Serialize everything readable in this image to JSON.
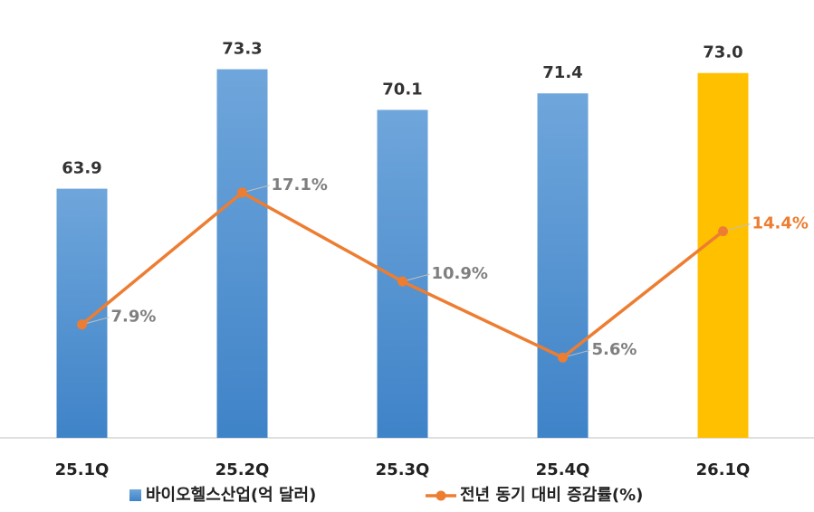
{
  "chart_data": {
    "type": "combo",
    "categories": [
      "25.1Q",
      "25.2Q",
      "25.3Q",
      "25.4Q",
      "26.1Q"
    ],
    "ylim": [
      44.3,
      75.9
    ],
    "y2lim": [
      0,
      28
    ],
    "series": [
      {
        "name": "바이오헬스산업(억 달러)",
        "type": "bar",
        "color": "#5b9bd5",
        "colors": [
          "#5b9bd5",
          "#5b9bd5",
          "#5b9bd5",
          "#5b9bd5",
          "#ffc000"
        ],
        "values": [
          63.9,
          73.3,
          70.1,
          71.4,
          73.0
        ],
        "value_labels": [
          "63.9",
          "73.3",
          "70.1",
          "71.4",
          "73.0"
        ]
      },
      {
        "name": "전년 동기 대비 증감률(%)",
        "type": "line",
        "axis": "y2",
        "color": "#ed7d31",
        "values": [
          7.9,
          17.1,
          10.9,
          5.6,
          14.4
        ],
        "value_labels": [
          "7.9%",
          "17.1%",
          "10.9%",
          "5.6%",
          "14.4%"
        ],
        "label_colors": [
          "#7f7f7f",
          "#7f7f7f",
          "#7f7f7f",
          "#7f7f7f",
          "#ed7d31"
        ]
      }
    ]
  }
}
